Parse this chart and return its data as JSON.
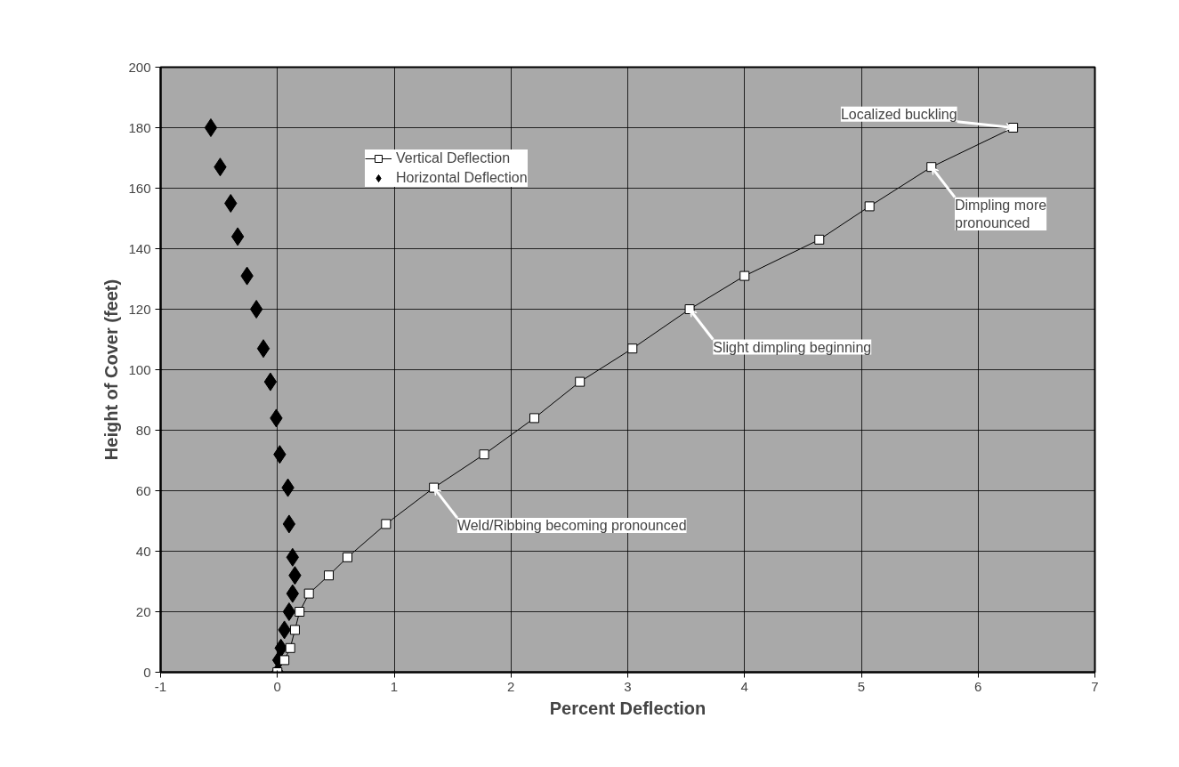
{
  "chart_data": {
    "type": "scatter",
    "xlabel": "Percent Deflection",
    "ylabel": "Height of Cover (feet)",
    "xlim": [
      -1,
      7
    ],
    "xticks": [
      -1,
      0,
      1,
      2,
      3,
      4,
      5,
      6,
      7
    ],
    "ylim": [
      0,
      200
    ],
    "yticks": [
      0,
      20,
      40,
      60,
      80,
      100,
      120,
      140,
      160,
      180,
      200
    ],
    "grid": true,
    "legend": "top left",
    "series": [
      {
        "name": "Vertical Deflection",
        "type": "line",
        "marker": "square",
        "color": "#ffffff",
        "x": [
          0,
          0.06,
          0.11,
          0.15,
          0.19,
          0.27,
          0.44,
          0.6,
          0.93,
          1.34,
          1.77,
          2.2,
          2.59,
          3.04,
          3.53,
          4.0,
          4.64,
          5.07,
          5.6,
          6.3
        ],
        "values": [
          0,
          4,
          8,
          14,
          20,
          26,
          32,
          38,
          49,
          61,
          72,
          84,
          96,
          107,
          120,
          131,
          143,
          154,
          167,
          180
        ]
      },
      {
        "name": "Horizontal Deflection",
        "type": "scatter",
        "marker": "diamond",
        "color": "#000000",
        "x": [
          0,
          0.01,
          0.03,
          0.06,
          0.1,
          0.13,
          0.15,
          0.13,
          0.1,
          0.09,
          0.02,
          -0.01,
          -0.06,
          -0.12,
          -0.18,
          -0.26,
          -0.34,
          -0.4,
          -0.49,
          -0.57
        ],
        "values": [
          0,
          4,
          8,
          14,
          20,
          26,
          32,
          38,
          49,
          61,
          72,
          84,
          96,
          107,
          120,
          131,
          144,
          155,
          167,
          180
        ]
      }
    ],
    "annotations": [
      {
        "text": "Localized buckling",
        "x": 6.3,
        "y": 180
      },
      {
        "text": "Dimpling more\npronounced",
        "x": 5.6,
        "y": 167
      },
      {
        "text": "Slight dimpling beginning",
        "x": 3.53,
        "y": 120
      },
      {
        "text": "Weld/Ribbing becoming pronounced",
        "x": 1.34,
        "y": 61
      }
    ]
  }
}
